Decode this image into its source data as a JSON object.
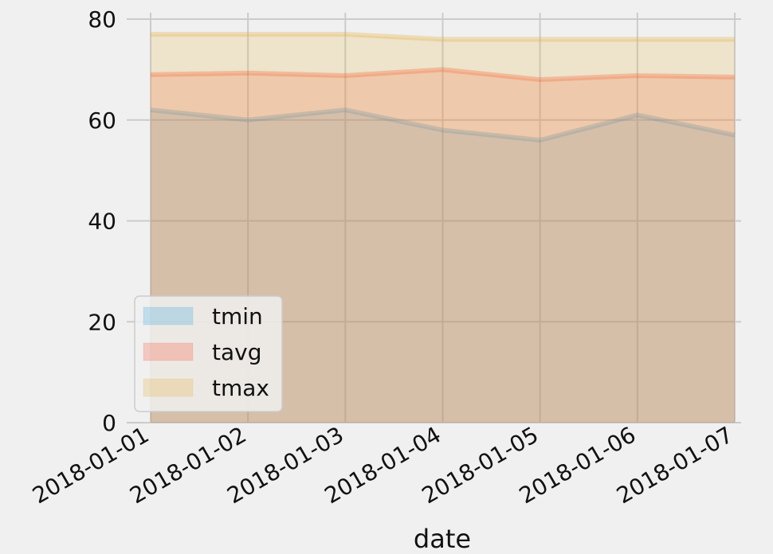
{
  "chart_data": {
    "type": "area",
    "stacked": false,
    "x": [
      "2018-01-01",
      "2018-01-02",
      "2018-01-03",
      "2018-01-04",
      "2018-01-05",
      "2018-01-06",
      "2018-01-07"
    ],
    "series": [
      {
        "name": "tmin",
        "color": "#30a2da",
        "values": [
          62.0,
          60.0,
          62.0,
          58.0,
          56.0,
          61.0,
          57.0
        ]
      },
      {
        "name": "tavg",
        "color": "#fc4f30",
        "values": [
          69.0,
          69.3,
          68.8,
          70.0,
          68.0,
          68.8,
          68.5
        ]
      },
      {
        "name": "tmax",
        "color": "#e5ae38",
        "values": [
          77.0,
          77.0,
          77.0,
          76.0,
          76.0,
          76.0,
          76.0
        ]
      }
    ],
    "xlabel": "date",
    "ylabel": "",
    "ylim": [
      0,
      80
    ],
    "yticks": [
      0,
      20,
      40,
      60,
      80
    ],
    "grid": true,
    "legend_position": "lower-left"
  }
}
